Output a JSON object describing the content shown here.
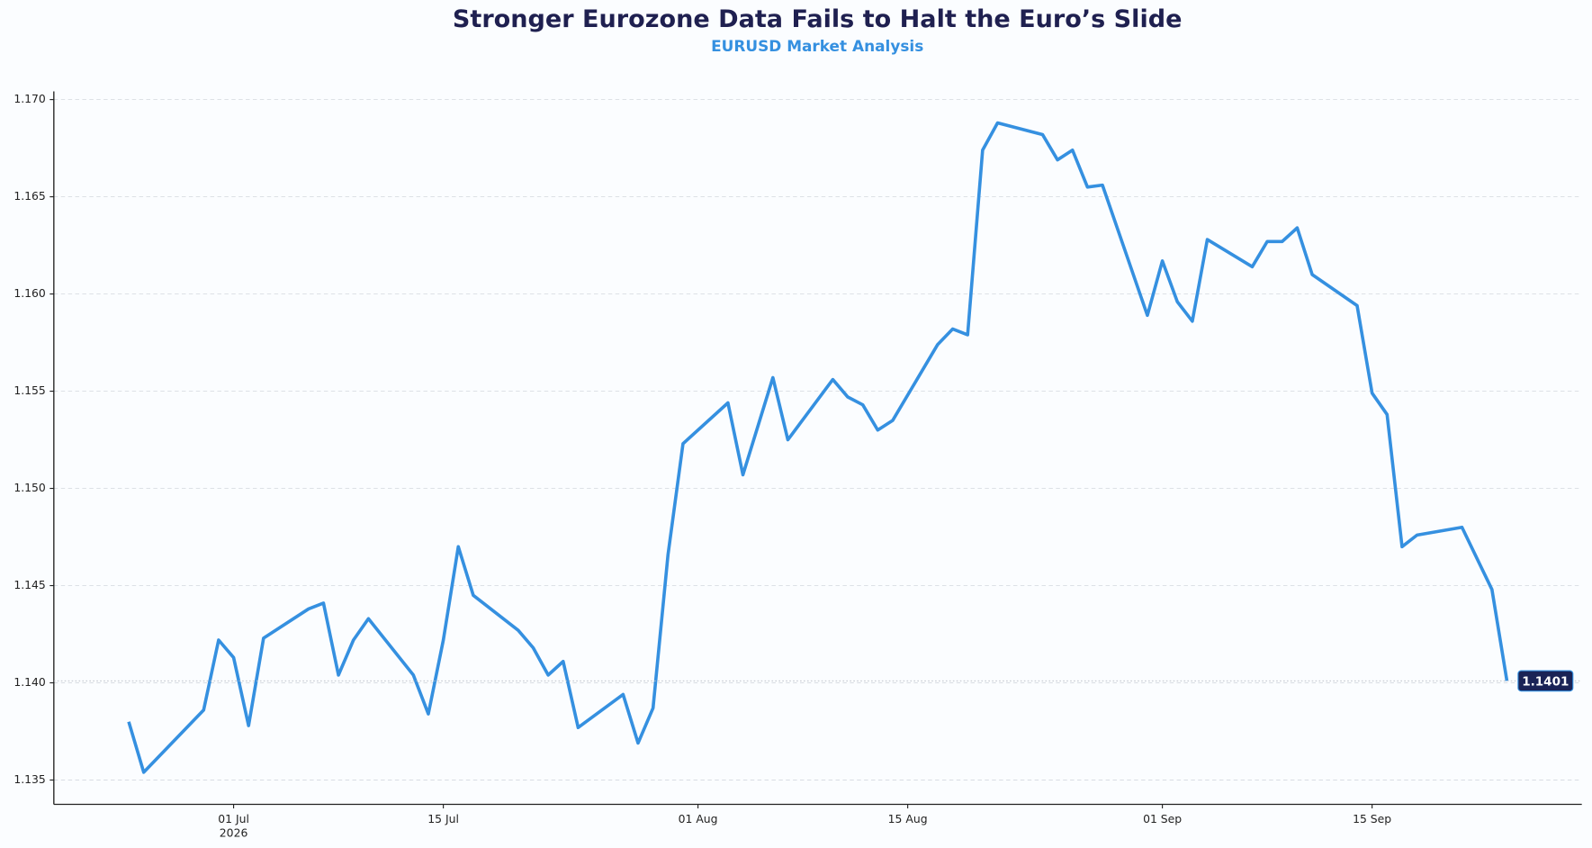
{
  "chart_data": {
    "type": "line",
    "title": "Stronger Eurozone Data Fails to Halt the Euro’s Slide",
    "subtitle": "EURUSD Market Analysis",
    "x": [
      "2026-06-24",
      "2026-06-25",
      "2026-06-29",
      "2026-06-30",
      "2026-07-01",
      "2026-07-02",
      "2026-07-03",
      "2026-07-06",
      "2026-07-07",
      "2026-07-08",
      "2026-07-09",
      "2026-07-10",
      "2026-07-13",
      "2026-07-14",
      "2026-07-15",
      "2026-07-16",
      "2026-07-17",
      "2026-07-20",
      "2026-07-21",
      "2026-07-22",
      "2026-07-23",
      "2026-07-24",
      "2026-07-27",
      "2026-07-28",
      "2026-07-29",
      "2026-07-30",
      "2026-07-31",
      "2026-08-03",
      "2026-08-04",
      "2026-08-05",
      "2026-08-06",
      "2026-08-07",
      "2026-08-10",
      "2026-08-11",
      "2026-08-12",
      "2026-08-13",
      "2026-08-14",
      "2026-08-17",
      "2026-08-18",
      "2026-08-19",
      "2026-08-20",
      "2026-08-21",
      "2026-08-24",
      "2026-08-25",
      "2026-08-26",
      "2026-08-27",
      "2026-08-28",
      "2026-08-31",
      "2026-09-01",
      "2026-09-02",
      "2026-09-03",
      "2026-09-04",
      "2026-09-07",
      "2026-09-08",
      "2026-09-09",
      "2026-09-10",
      "2026-09-11",
      "2026-09-14",
      "2026-09-15",
      "2026-09-16",
      "2026-09-17",
      "2026-09-18",
      "2026-09-21",
      "2026-09-22",
      "2026-09-23",
      "2026-09-24"
    ],
    "series": [
      {
        "name": "EURUSD",
        "color": "#3590e0",
        "values": [
          1.138,
          1.1354,
          1.1386,
          1.1422,
          1.1413,
          1.1378,
          1.1423,
          1.1438,
          1.1441,
          1.1404,
          1.1422,
          1.1433,
          1.1404,
          1.1384,
          1.1422,
          1.147,
          1.1445,
          1.1427,
          1.1418,
          1.1404,
          1.1411,
          1.1377,
          1.1394,
          1.1369,
          1.1387,
          1.1466,
          1.1523,
          1.1544,
          1.1507,
          1.1532,
          1.1557,
          1.1525,
          1.1556,
          1.1547,
          1.1543,
          1.153,
          1.1535,
          1.1574,
          1.1582,
          1.1579,
          1.1674,
          1.1688,
          1.1682,
          1.1669,
          1.1674,
          1.1655,
          1.1656,
          1.1589,
          1.1617,
          1.1596,
          1.1586,
          1.1628,
          1.1614,
          1.1627,
          1.1627,
          1.1634,
          1.161,
          1.1594,
          1.1549,
          1.1538,
          1.147,
          1.1476,
          1.148,
          1.1464,
          1.1448,
          1.1401
        ]
      }
    ],
    "xlim": [
      "2026-06-19",
      "2026-09-29"
    ],
    "xticks": [
      {
        "value": "2026-07-01",
        "label": "01 Jul"
      },
      {
        "value": "2026-07-15",
        "label": "15 Jul"
      },
      {
        "value": "2026-08-01",
        "label": "01 Aug"
      },
      {
        "value": "2026-08-15",
        "label": "15 Aug"
      },
      {
        "value": "2026-09-01",
        "label": "01 Sep"
      },
      {
        "value": "2026-09-15",
        "label": "15 Sep"
      }
    ],
    "x_year_label": "2026",
    "ylim": [
      1.13375,
      1.17042
    ],
    "yticks": [
      1.135,
      {
        "value": 1.14,
        "label": "1.140"
      },
      1.145,
      {
        "value": 1.15,
        "label": "1.150"
      },
      1.155,
      {
        "value": 1.16,
        "label": "1.160"
      },
      1.165,
      {
        "value": 1.17,
        "label": "1.170"
      }
    ],
    "grid": true
  }
}
